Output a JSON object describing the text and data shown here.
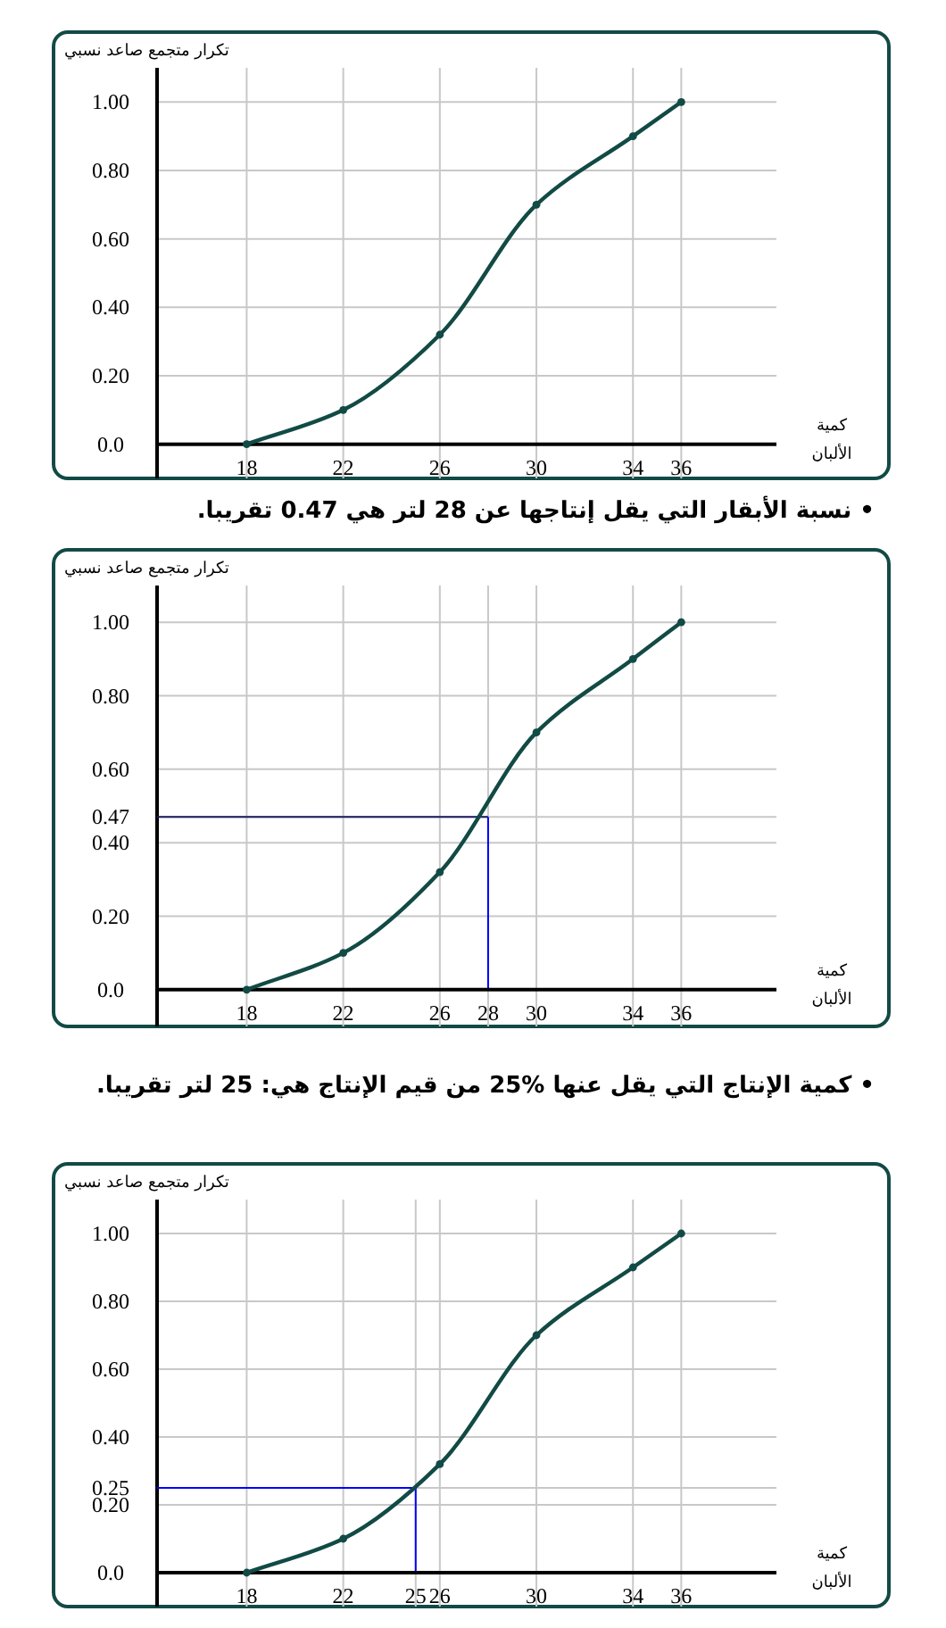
{
  "chart_data": [
    {
      "type": "line",
      "ylabel": "تكرار متجمع صاعد نسبي",
      "xlabel": "كمية الألبان",
      "x": [
        18,
        22,
        26,
        30,
        34,
        36
      ],
      "series": [
        {
          "color": "#124a45",
          "values": [
            0,
            0.1,
            0.32,
            0.7,
            0.9,
            1.0
          ]
        }
      ],
      "xlim": [
        10,
        44.6
      ],
      "xticks": [
        18,
        22,
        26,
        30,
        34,
        36
      ],
      "ylim": [
        -0.1,
        1.1
      ],
      "yticks": [
        {
          "value": 0,
          "label": "0.0"
        },
        {
          "value": 0.2,
          "label": "0.20"
        },
        {
          "value": 0.4,
          "label": "0.40"
        },
        {
          "value": 0.6,
          "label": "0.60"
        },
        {
          "value": 0.8,
          "label": "0.80"
        },
        {
          "value": 1,
          "label": "1.00"
        }
      ],
      "ref_lines": [
        {
          "axis": "y",
          "value": 0,
          "color": "#000000"
        }
      ],
      "grid": true,
      "marker": "circle"
    },
    {
      "type": "line",
      "title": "• نسبة الأبقار التي يقل إنتاجها عن 28 لتر هي  0.47 تقريبا.",
      "ylabel": "تكرار متجمع صاعد نسبي",
      "xlabel": "كمية الألبان",
      "x": [
        18,
        22,
        26,
        30,
        34,
        36
      ],
      "series": [
        {
          "color": "#124a45",
          "values": [
            0,
            0.1,
            0.32,
            0.7,
            0.9,
            1.0
          ]
        }
      ],
      "xlim": [
        10,
        44.6
      ],
      "xticks": [
        18,
        22,
        26,
        28,
        30,
        34,
        36
      ],
      "ylim": [
        -0.1,
        1.1
      ],
      "yticks": [
        {
          "value": 0,
          "label": "0.0"
        },
        {
          "value": 0.2,
          "label": "0.20"
        },
        {
          "value": 0.4,
          "label": "0.40"
        },
        {
          "value": 0.47,
          "label": "0.47"
        },
        {
          "value": 0.6,
          "label": "0.60"
        },
        {
          "value": 0.8,
          "label": "0.80"
        },
        {
          "value": 1,
          "label": "1.00"
        }
      ],
      "ref_lines": [
        {
          "axis": "y",
          "value": 0.47,
          "color": "#1a1a5e"
        },
        {
          "axis": "x",
          "value": 28,
          "color": "#0000ff"
        },
        {
          "axis": "y",
          "value": 0,
          "color": "#000000"
        }
      ],
      "grid": true,
      "marker": "circle"
    },
    {
      "type": "line",
      "title": "• كمية الإنتاج التي يقل عنها %25 من قيم الإنتاج هي: 25 لتر تقريبا.",
      "ylabel": "تكرار متجمع صاعد نسبي",
      "xlabel": "كمية الألبان",
      "x": [
        18,
        22,
        26,
        30,
        34,
        36
      ],
      "series": [
        {
          "color": "#124a45",
          "values": [
            0,
            0.1,
            0.32,
            0.7,
            0.9,
            1.0
          ]
        }
      ],
      "xlim": [
        10,
        44.6
      ],
      "xticks": [
        18,
        22,
        25,
        26,
        30,
        34,
        36
      ],
      "ylim": [
        -0.1,
        1.1
      ],
      "yticks": [
        {
          "value": 0,
          "label": "0.0"
        },
        {
          "value": 0.2,
          "label": "0.20"
        },
        {
          "value": 0.25,
          "label": "0.25"
        },
        {
          "value": 0.4,
          "label": "0.40"
        },
        {
          "value": 0.6,
          "label": "0.60"
        },
        {
          "value": 0.8,
          "label": "0.80"
        },
        {
          "value": 1,
          "label": "1.00"
        }
      ],
      "ref_lines": [
        {
          "axis": "y",
          "value": 0.25,
          "color": "#0000ff"
        },
        {
          "axis": "x",
          "value": 25,
          "color": "#0000ff"
        },
        {
          "axis": "y",
          "value": 0,
          "color": "#000000"
        }
      ],
      "grid": true,
      "marker": "circle"
    }
  ]
}
